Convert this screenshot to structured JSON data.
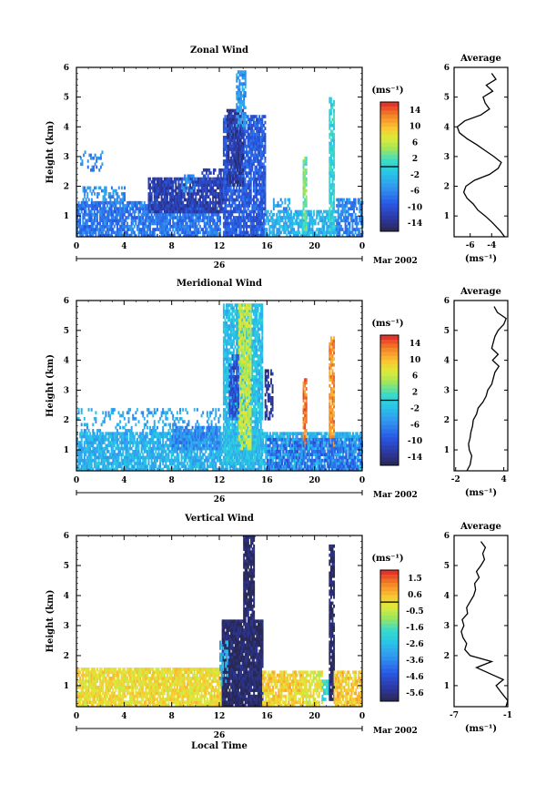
{
  "chart_data": [
    {
      "type": "heatmap",
      "title": "Zonal Wind",
      "ylabel": "Height (km)",
      "ylim": [
        0.3,
        6.0
      ],
      "yticks": [
        1,
        2,
        3,
        4,
        5,
        6
      ],
      "xlim": [
        0,
        24
      ],
      "xticks": [
        "0",
        "4",
        "8",
        "12",
        "16",
        "20",
        "0"
      ],
      "date_day": "26",
      "date_label": "Mar 2002",
      "colorbar": {
        "unit": "(ms⁻¹)",
        "ticks": [
          "14",
          "10",
          "6",
          "2",
          "-2",
          "-6",
          "-10",
          "-14"
        ],
        "range": [
          -16,
          16
        ]
      },
      "patches": [
        {
          "x0": 0.0,
          "x1": 12.0,
          "y0": 0.3,
          "y1": 1.5,
          "v": -7,
          "density": 0.8
        },
        {
          "x0": 0.5,
          "x1": 4.0,
          "y0": 1.5,
          "y1": 2.0,
          "v": -5,
          "density": 0.45
        },
        {
          "x0": 0.3,
          "x1": 2.2,
          "y0": 2.5,
          "y1": 3.2,
          "v": -6,
          "density": 0.3
        },
        {
          "x0": 6.0,
          "x1": 12.5,
          "y0": 1.1,
          "y1": 2.3,
          "v": -12,
          "density": 0.85
        },
        {
          "x0": 8.8,
          "x1": 10.0,
          "y0": 1.8,
          "y1": 2.4,
          "v": -6,
          "density": 0.5
        },
        {
          "x0": 10.5,
          "x1": 12.5,
          "y0": 2.0,
          "y1": 2.6,
          "v": -11,
          "density": 0.6
        },
        {
          "x0": 12.3,
          "x1": 15.8,
          "y0": 0.3,
          "y1": 4.4,
          "v": -9,
          "density": 0.85
        },
        {
          "x0": 12.6,
          "x1": 14.0,
          "y0": 2.0,
          "y1": 4.6,
          "v": -13,
          "density": 0.75
        },
        {
          "x0": 13.4,
          "x1": 14.2,
          "y0": 4.0,
          "y1": 5.8,
          "v": -5,
          "density": 0.7
        },
        {
          "x0": 15.8,
          "x1": 22.0,
          "y0": 0.3,
          "y1": 1.2,
          "v": -3,
          "density": 0.75
        },
        {
          "x0": 16.5,
          "x1": 18.0,
          "y0": 1.2,
          "y1": 1.6,
          "v": -5,
          "density": 0.4
        },
        {
          "x0": 19.0,
          "x1": 19.3,
          "y0": 0.5,
          "y1": 3.0,
          "v": 3,
          "density": 0.8
        },
        {
          "x0": 21.2,
          "x1": 21.6,
          "y0": 0.5,
          "y1": 4.9,
          "v": 0,
          "density": 0.8
        },
        {
          "x0": 21.8,
          "x1": 24.0,
          "y0": 0.3,
          "y1": 1.6,
          "v": -6,
          "density": 0.7
        }
      ],
      "avg_profile": {
        "title": "Average",
        "xlabel": "(ms⁻¹)",
        "xlim": [
          -7.5,
          -2.5
        ],
        "xticks": [
          -6,
          -4
        ],
        "heights": [
          0.3,
          0.5,
          0.8,
          1.0,
          1.2,
          1.4,
          1.6,
          1.8,
          2.0,
          2.2,
          2.4,
          2.6,
          2.8,
          3.0,
          3.2,
          3.4,
          3.6,
          3.8,
          4.0,
          4.2,
          4.4,
          4.6,
          4.8,
          5.0,
          5.2,
          5.4,
          5.6,
          5.8
        ],
        "values": [
          -2.8,
          -3.2,
          -4.0,
          -4.6,
          -5.3,
          -5.7,
          -6.3,
          -6.6,
          -6.4,
          -5.6,
          -4.2,
          -3.4,
          -3.1,
          -3.8,
          -4.6,
          -5.4,
          -6.3,
          -7.0,
          -7.2,
          -6.5,
          -5.0,
          -4.2,
          -4.6,
          -4.8,
          -3.9,
          -4.5,
          -3.6,
          -4.0
        ]
      }
    },
    {
      "type": "heatmap",
      "title": "Meridional Wind",
      "ylabel": "Height (km)",
      "ylim": [
        0.3,
        6.0
      ],
      "yticks": [
        1,
        2,
        3,
        4,
        5,
        6
      ],
      "xlim": [
        0,
        24
      ],
      "xticks": [
        "0",
        "4",
        "8",
        "12",
        "16",
        "20",
        "0"
      ],
      "date_day": "26",
      "date_label": "Mar 2002",
      "colorbar": {
        "unit": "(ms⁻¹)",
        "ticks": [
          "14",
          "10",
          "6",
          "2",
          "-2",
          "-6",
          "-10",
          "-14"
        ],
        "range": [
          -16,
          16
        ]
      },
      "patches": [
        {
          "x0": 0.0,
          "x1": 24.0,
          "y0": 0.3,
          "y1": 1.6,
          "v": -3,
          "density": 0.82
        },
        {
          "x0": 0.0,
          "x1": 12.0,
          "y0": 1.6,
          "y1": 2.4,
          "v": -4,
          "density": 0.25
        },
        {
          "x0": 8.0,
          "x1": 12.0,
          "y0": 1.0,
          "y1": 1.8,
          "v": -6,
          "density": 0.6
        },
        {
          "x0": 12.3,
          "x1": 15.6,
          "y0": 0.5,
          "y1": 5.8,
          "v": -2,
          "density": 0.85
        },
        {
          "x0": 13.6,
          "x1": 14.6,
          "y0": 1.0,
          "y1": 5.8,
          "v": 6,
          "density": 0.75
        },
        {
          "x0": 12.8,
          "x1": 13.6,
          "y0": 2.0,
          "y1": 4.2,
          "v": -10,
          "density": 0.6
        },
        {
          "x0": 15.8,
          "x1": 16.5,
          "y0": 2.0,
          "y1": 3.8,
          "v": -13,
          "density": 0.6
        },
        {
          "x0": 19.0,
          "x1": 19.3,
          "y0": 1.0,
          "y1": 3.4,
          "v": 13,
          "density": 0.8
        },
        {
          "x0": 21.2,
          "x1": 21.6,
          "y0": 0.8,
          "y1": 4.8,
          "v": 12,
          "density": 0.8
        },
        {
          "x0": 16.0,
          "x1": 24.0,
          "y0": 0.3,
          "y1": 1.4,
          "v": -8,
          "density": 0.55
        }
      ],
      "avg_profile": {
        "title": "Average",
        "xlabel": "(ms⁻¹)",
        "xlim": [
          -2.2,
          4.5
        ],
        "xticks": [
          -2,
          4
        ],
        "heights": [
          0.3,
          0.5,
          0.8,
          1.0,
          1.2,
          1.4,
          1.6,
          1.8,
          2.0,
          2.2,
          2.4,
          2.6,
          2.8,
          3.0,
          3.2,
          3.4,
          3.6,
          3.8,
          4.0,
          4.2,
          4.4,
          4.6,
          4.8,
          5.0,
          5.2,
          5.4,
          5.6,
          5.8
        ],
        "values": [
          -0.6,
          -0.2,
          0.0,
          -0.3,
          -0.4,
          -0.2,
          -0.1,
          0.1,
          0.2,
          0.6,
          0.8,
          1.4,
          1.8,
          2.0,
          2.5,
          2.7,
          2.9,
          3.4,
          2.6,
          3.3,
          2.5,
          2.7,
          2.9,
          3.3,
          4.0,
          4.3,
          3.2,
          2.8
        ]
      }
    },
    {
      "type": "heatmap",
      "title": "Vertical Wind",
      "ylabel": "Height (km)",
      "ylim": [
        0.3,
        6.0
      ],
      "yticks": [
        1,
        2,
        3,
        4,
        5,
        6
      ],
      "xlim": [
        0,
        24
      ],
      "xticks": [
        "0",
        "4",
        "8",
        "12",
        "16",
        "20",
        "0"
      ],
      "date_day": "26",
      "date_label": "Mar 2002",
      "xlabel": "Local Time",
      "colorbar": {
        "unit": "(ms⁻¹)",
        "ticks": [
          "1.5",
          "0.6",
          "-0.5",
          "-1.6",
          "-2.6",
          "-3.6",
          "-4.6",
          "-5.6"
        ],
        "range": [
          -6.2,
          2.0
        ]
      },
      "patches": [
        {
          "x0": 0.0,
          "x1": 12.2,
          "y0": 0.3,
          "y1": 1.6,
          "v": 0.0,
          "density": 0.85
        },
        {
          "x0": 12.2,
          "x1": 15.6,
          "y0": 0.3,
          "y1": 3.2,
          "v": -6.0,
          "density": 0.95
        },
        {
          "x0": 14.0,
          "x1": 14.9,
          "y0": 3.2,
          "y1": 5.9,
          "v": -6.0,
          "density": 0.9
        },
        {
          "x0": 12.0,
          "x1": 12.6,
          "y0": 1.0,
          "y1": 2.5,
          "v": -2.8,
          "density": 0.5
        },
        {
          "x0": 15.6,
          "x1": 19.0,
          "y0": 0.3,
          "y1": 1.5,
          "v": 0.2,
          "density": 0.8
        },
        {
          "x0": 19.0,
          "x1": 20.6,
          "y0": 0.3,
          "y1": 1.5,
          "v": -0.2,
          "density": 0.7
        },
        {
          "x0": 20.6,
          "x1": 21.2,
          "y0": 0.5,
          "y1": 1.2,
          "v": -2.0,
          "density": 0.6
        },
        {
          "x0": 21.2,
          "x1": 21.6,
          "y0": 0.5,
          "y1": 5.6,
          "v": -6.0,
          "density": 0.85
        },
        {
          "x0": 21.6,
          "x1": 24.0,
          "y0": 0.3,
          "y1": 1.5,
          "v": 0.3,
          "density": 0.8
        }
      ],
      "avg_profile": {
        "title": "Average",
        "xlabel": "(ms⁻¹)",
        "xlim": [
          -7,
          -1
        ],
        "xticks": [
          -7,
          -1
        ],
        "heights": [
          0.3,
          0.5,
          0.8,
          1.0,
          1.2,
          1.4,
          1.6,
          1.8,
          2.0,
          2.2,
          2.4,
          2.6,
          2.8,
          3.0,
          3.2,
          3.4,
          3.6,
          3.8,
          4.0,
          4.2,
          4.4,
          4.6,
          4.8,
          5.0,
          5.2,
          5.4,
          5.6,
          5.8
        ],
        "values": [
          -1.2,
          -1.0,
          -1.8,
          -2.3,
          -1.5,
          -3.0,
          -4.5,
          -2.8,
          -5.2,
          -5.8,
          -5.6,
          -6.0,
          -6.2,
          -5.9,
          -6.1,
          -5.5,
          -5.6,
          -5.2,
          -4.8,
          -4.6,
          -4.7,
          -4.2,
          -4.5,
          -4.0,
          -3.6,
          -3.8,
          -3.5,
          -4.0
        ]
      }
    }
  ]
}
